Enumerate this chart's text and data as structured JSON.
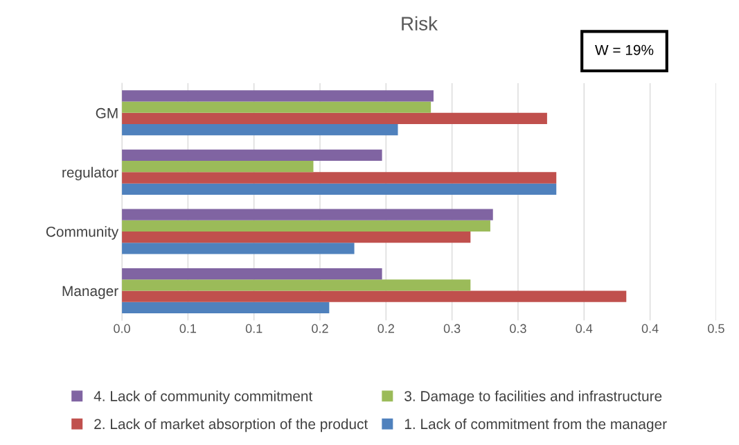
{
  "chart_data": {
    "type": "bar",
    "orientation": "horizontal",
    "title": "Risk",
    "categories": [
      "GM",
      "regulator",
      "Community",
      "Manager"
    ],
    "series": [
      {
        "name": "1. Lack of commitment from the manager",
        "color": "#4f81bd",
        "values": [
          0.209,
          0.329,
          0.176,
          0.157
        ]
      },
      {
        "name": "2. Lack of market absorption of the product",
        "color": "#c0504d",
        "values": [
          0.322,
          0.329,
          0.264,
          0.382
        ]
      },
      {
        "name": "3. Damage to facilities and infrastructure",
        "color": "#9bbb59",
        "values": [
          0.234,
          0.145,
          0.279,
          0.264
        ]
      },
      {
        "name": "4. Lack of community commitment",
        "color": "#8064a2",
        "values": [
          0.236,
          0.197,
          0.281,
          0.197
        ]
      }
    ],
    "xlim": [
      0,
      0.45
    ],
    "xticks": [
      {
        "value": 0,
        "label": "0.0"
      },
      {
        "value": 0.05,
        "label": "0.1"
      },
      {
        "value": 0.1,
        "label": "0.1"
      },
      {
        "value": 0.15,
        "label": "0.2"
      },
      {
        "value": 0.2,
        "label": "0.2"
      },
      {
        "value": 0.25,
        "label": "0.3"
      },
      {
        "value": 0.3,
        "label": "0.3"
      },
      {
        "value": 0.35,
        "label": "0.4"
      },
      {
        "value": 0.4,
        "label": "0.4"
      },
      {
        "value": 0.45,
        "label": "0.5"
      }
    ],
    "grid": "x",
    "legend": "bottom",
    "annotations": [
      "W = 19%"
    ]
  }
}
